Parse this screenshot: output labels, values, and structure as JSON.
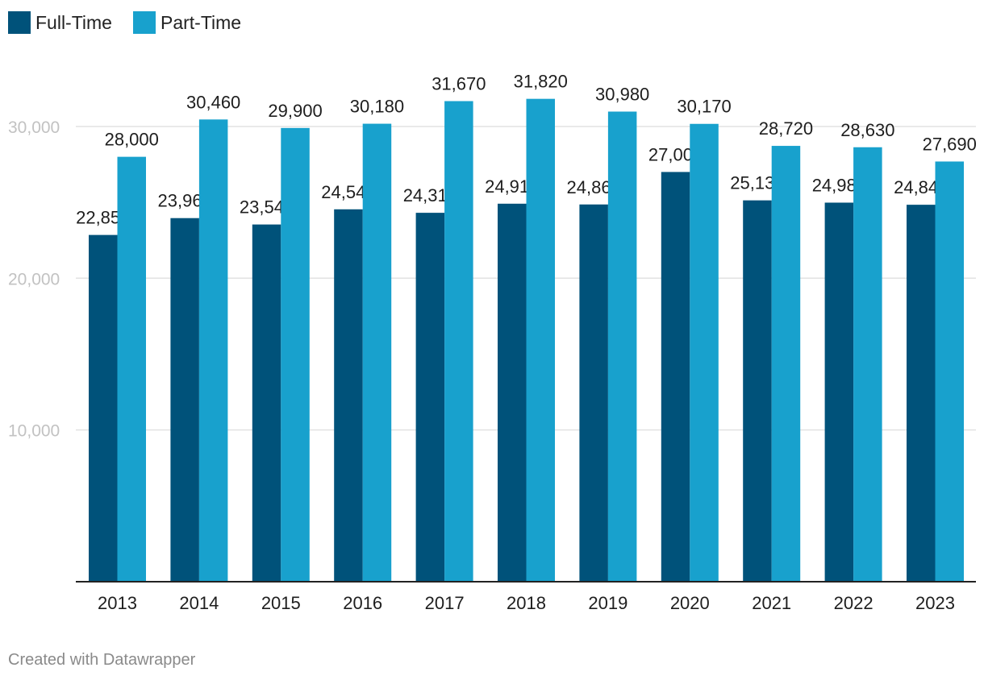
{
  "chart_data": {
    "type": "bar",
    "categories": [
      "2013",
      "2014",
      "2015",
      "2016",
      "2017",
      "2018",
      "2019",
      "2020",
      "2021",
      "2022",
      "2023"
    ],
    "series": [
      {
        "name": "Full-Time",
        "color": "#00527a",
        "values": [
          22850,
          23960,
          23540,
          24540,
          24310,
          24910,
          24860,
          27000,
          25130,
          24980,
          24840
        ],
        "labels": [
          "22,850",
          "23,960",
          "23,540",
          "24,540",
          "24,310",
          "24,910",
          "24,860",
          "27,000",
          "25,130",
          "24,980",
          "24,840"
        ]
      },
      {
        "name": "Part-Time",
        "color": "#18a1cd",
        "values": [
          28000,
          30460,
          29900,
          30180,
          31670,
          31820,
          30980,
          30170,
          28720,
          28630,
          27690
        ],
        "labels": [
          "28,000",
          "30,460",
          "29,900",
          "30,180",
          "31,670",
          "31,820",
          "30,980",
          "30,170",
          "28,720",
          "28,630",
          "27,690"
        ]
      }
    ],
    "yticks": [
      10000,
      20000,
      30000
    ],
    "ytick_labels": [
      "10,000",
      "20,000",
      "30,000"
    ],
    "ylim": [
      0,
      32000
    ],
    "grid": true,
    "legend_position": "top-left",
    "title": "",
    "xlabel": "",
    "ylabel": ""
  },
  "credit": "Created with Datawrapper"
}
